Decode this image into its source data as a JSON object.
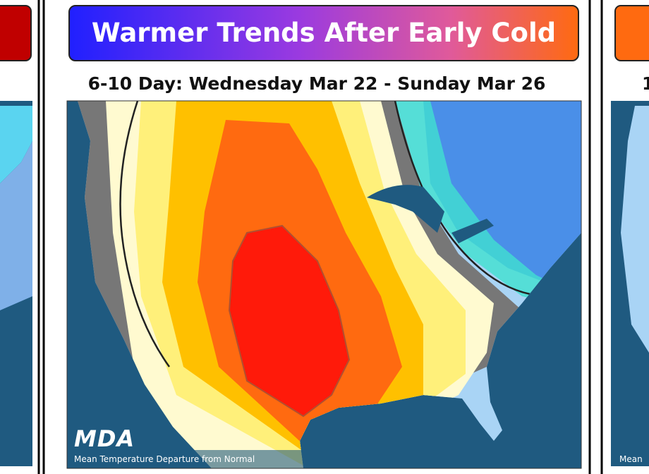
{
  "header": {
    "title": "Warmer Trends After Early Cold"
  },
  "subtitle": "6-10 Day: Wednesday Mar 22 - Sunday Mar 26",
  "map": {
    "logo": "MDA",
    "caption": "Mean Temperature Departure from Normal"
  },
  "side_panels": {
    "right": {
      "subtitle": "1",
      "caption": "Mean"
    }
  }
}
